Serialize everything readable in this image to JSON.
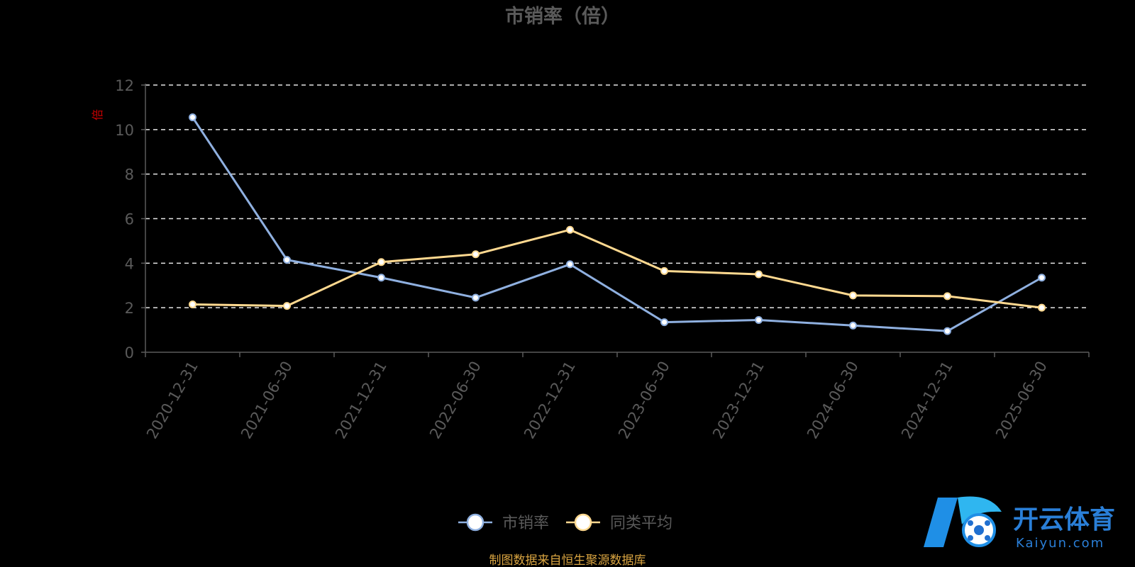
{
  "chart_data": {
    "type": "line",
    "title": "市销率（倍）",
    "unit_label": "倍",
    "x": [
      "2020-12-31",
      "2021-06-30",
      "2021-12-31",
      "2022-06-30",
      "2022-12-31",
      "2023-06-30",
      "2023-12-31",
      "2024-06-30",
      "2024-12-31",
      "2025-06-30"
    ],
    "ylim": [
      0,
      12
    ],
    "yticks": [
      0,
      2,
      4,
      6,
      8,
      10,
      12
    ],
    "grid": true,
    "legend_position": "bottom-center",
    "series": [
      {
        "name": "市销率",
        "color": "#8fb0e0",
        "values": [
          10.55,
          4.15,
          3.35,
          2.45,
          3.95,
          1.35,
          1.45,
          1.2,
          0.95,
          3.35
        ]
      },
      {
        "name": "同类平均",
        "color": "#ffd990",
        "values": [
          2.15,
          2.08,
          4.05,
          4.4,
          5.5,
          3.65,
          3.5,
          2.55,
          2.52,
          2.0
        ]
      }
    ]
  },
  "source_note": "制图数据来自恒生聚源数据库",
  "watermark": {
    "brand": "开云体育",
    "domain": "Kaiyun.com",
    "icon": "kaiyun-logo-icon",
    "color": "#2a7fd8"
  }
}
